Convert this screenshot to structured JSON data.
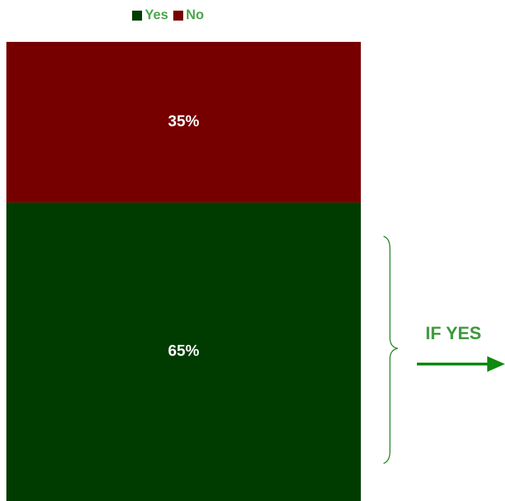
{
  "chart_data": {
    "type": "bar",
    "stacked": true,
    "categories": [
      ""
    ],
    "series": [
      {
        "name": "Yes",
        "values": [
          65
        ],
        "label": "65%",
        "color": "#003c00"
      },
      {
        "name": "No",
        "values": [
          35
        ],
        "label": "35%",
        "color": "#760000"
      }
    ],
    "ylim": [
      0,
      100
    ],
    "grid": false,
    "legend_position": "top-center",
    "legend_text_color": "#4ca64c"
  },
  "annotation": {
    "text": "IF YES",
    "color": "#3c9a3c",
    "shapes": [
      "curly-brace",
      "right-arrow"
    ]
  }
}
